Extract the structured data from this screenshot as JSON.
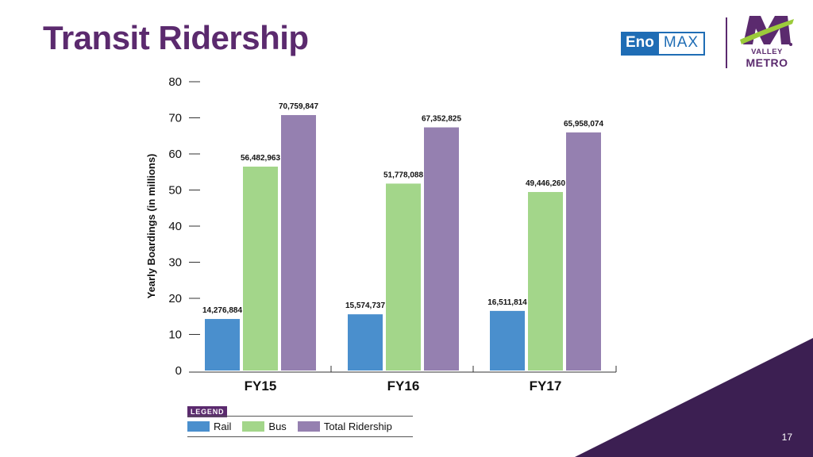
{
  "slide": {
    "title": "Transit Ridership",
    "page_number": "17"
  },
  "logos": {
    "eno_left": "Eno",
    "eno_right": "MAX",
    "valley_metro_line1": "VALLEY",
    "valley_metro_line2": "METRO"
  },
  "legend": {
    "title": "LEGEND",
    "items": [
      "Rail",
      "Bus",
      "Total Ridership"
    ]
  },
  "colors": {
    "title": "#5b2a6e",
    "rail": "#4a8fcd",
    "bus": "#a3d68a",
    "total": "#9580b0",
    "corner": "#3c1f52"
  },
  "chart_data": {
    "type": "bar",
    "categories": [
      "FY15",
      "FY16",
      "FY17"
    ],
    "series": [
      {
        "name": "Rail",
        "values": [
          14276884,
          15574737,
          16511814
        ],
        "labels": [
          "14,276,884",
          "15,574,737",
          "16,511,814"
        ]
      },
      {
        "name": "Bus",
        "values": [
          56482963,
          51778088,
          49446260
        ],
        "labels": [
          "56,482,963",
          "51,778,088",
          "49,446,260"
        ]
      },
      {
        "name": "Total Ridership",
        "values": [
          70759847,
          67352825,
          65958074
        ],
        "labels": [
          "70,759,847",
          "67,352,825",
          "65,958,074"
        ]
      }
    ],
    "ylabel": "Yearly Boardings (in millions)",
    "ylim": [
      0,
      80
    ],
    "yticks": [
      "0",
      "10",
      "20",
      "30",
      "40",
      "50",
      "60",
      "70",
      "80"
    ],
    "legend_position": "bottom",
    "grid": false
  }
}
